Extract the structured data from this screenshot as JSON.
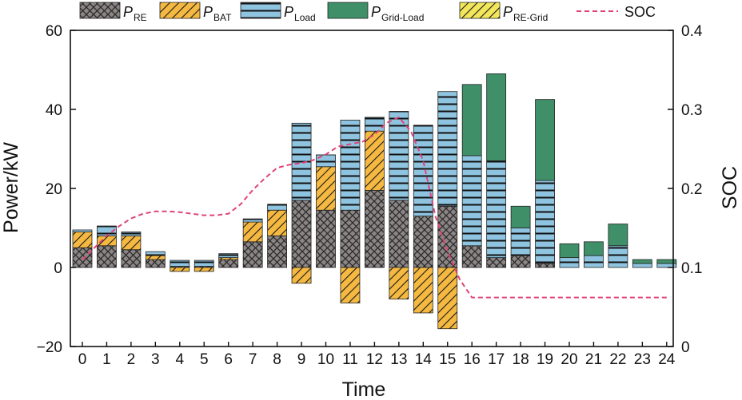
{
  "chart_data": {
    "type": "bar",
    "title": "",
    "xlabel": "Time",
    "ylabel": "Power/kW",
    "y2label": "SOC",
    "ylim": [
      -20,
      60
    ],
    "y2lim": [
      0,
      0.4
    ],
    "yticks": [
      -20,
      0,
      20,
      40,
      60
    ],
    "ytick_labels": [
      "−20",
      "0",
      "20",
      "40",
      "60"
    ],
    "y2ticks": [
      0,
      0.1,
      0.2,
      0.3,
      0.4
    ],
    "y2tick_labels": [
      "0",
      "0.1",
      "0.2",
      "0.3",
      "0.4"
    ],
    "categories": [
      "0",
      "1",
      "2",
      "3",
      "4",
      "5",
      "6",
      "7",
      "8",
      "9",
      "10",
      "11",
      "12",
      "13",
      "14",
      "15",
      "16",
      "17",
      "18",
      "19",
      "20",
      "21",
      "22",
      "23",
      "24"
    ],
    "legend_position": "top",
    "grid": false,
    "series": [
      {
        "name": "P_RE",
        "label_main": "P",
        "label_sub": "RE",
        "kind": "bar",
        "pattern": "crosshatch",
        "color": "#8c8585",
        "values": [
          5.0,
          5.5,
          4.5,
          2.0,
          0.3,
          0.3,
          2.0,
          6.5,
          8.0,
          17.0,
          14.5,
          14.5,
          19.5,
          17.0,
          13.0,
          15.5,
          5.5,
          2.5,
          3.0,
          1.0,
          0,
          0,
          0,
          0,
          0
        ]
      },
      {
        "name": "P_BAT",
        "label_main": "P",
        "label_sub": "BAT",
        "kind": "bar",
        "pattern": "diagonal",
        "color": "#f5b941",
        "values": [
          4.0,
          2.5,
          3.5,
          1.0,
          -1.0,
          -1.0,
          0.5,
          5.0,
          6.5,
          -4.0,
          11.0,
          -9.0,
          15.0,
          -8.0,
          -11.5,
          -15.5,
          0,
          0,
          0,
          0,
          0,
          0,
          0,
          0,
          0
        ]
      },
      {
        "name": "P_Load",
        "label_main": "P",
        "label_sub": "Load",
        "kind": "bar",
        "pattern": "horizontal",
        "color": "#8fc4e0",
        "values": [
          0.5,
          2.5,
          1.0,
          1.0,
          1.5,
          1.5,
          1.0,
          0.8,
          1.5,
          19.5,
          3.0,
          22.8,
          3.5,
          22.5,
          23.0,
          29.0,
          22.8,
          24.5,
          7.0,
          21.0,
          2.5,
          3.0,
          5.5,
          1.0,
          1.0
        ]
      },
      {
        "name": "P_Grid-Load",
        "label_main": "P",
        "label_sub": "Grid-Load",
        "kind": "bar",
        "pattern": "solid",
        "color": "#3f8f69",
        "values": [
          0,
          0,
          0,
          0,
          0,
          0,
          0,
          0,
          0,
          0,
          0,
          0,
          0,
          0,
          0,
          0,
          18.0,
          22.0,
          5.5,
          20.5,
          3.5,
          3.5,
          5.5,
          1.0,
          1.0
        ]
      },
      {
        "name": "P_RE-Grid",
        "label_main": "P",
        "label_sub": "RE-Grid",
        "kind": "bar",
        "pattern": "diagonal-yellow",
        "color": "#f2e65a",
        "values": [
          0,
          0,
          0,
          0,
          0,
          0,
          0,
          0,
          0,
          0,
          0,
          0,
          0,
          0,
          0,
          0,
          0,
          0,
          0,
          0,
          0,
          0,
          0,
          0,
          0
        ]
      },
      {
        "name": "SOC",
        "label_main": "SOC",
        "label_sub": "",
        "kind": "line",
        "axis": "right",
        "color": "#e0427a",
        "x": [
          0,
          0.5,
          1,
          1.5,
          2,
          2.5,
          3,
          3.5,
          4,
          4.5,
          5,
          5.5,
          6,
          6.5,
          7,
          7.5,
          8,
          8.5,
          9,
          9.5,
          10,
          10.5,
          11,
          11.5,
          12,
          12.5,
          13,
          13.5,
          14,
          14.5,
          15,
          15.5,
          16,
          17,
          18,
          19,
          20,
          21,
          22,
          23,
          24
        ],
        "values": [
          0.11,
          0.125,
          0.14,
          0.152,
          0.162,
          0.168,
          0.171,
          0.171,
          0.17,
          0.168,
          0.166,
          0.166,
          0.168,
          0.18,
          0.198,
          0.213,
          0.226,
          0.23,
          0.232,
          0.236,
          0.243,
          0.253,
          0.256,
          0.259,
          0.268,
          0.283,
          0.29,
          0.272,
          0.235,
          0.165,
          0.12,
          0.085,
          0.062,
          0.062,
          0.062,
          0.062,
          0.062,
          0.062,
          0.062,
          0.062,
          0.062
        ]
      }
    ]
  }
}
